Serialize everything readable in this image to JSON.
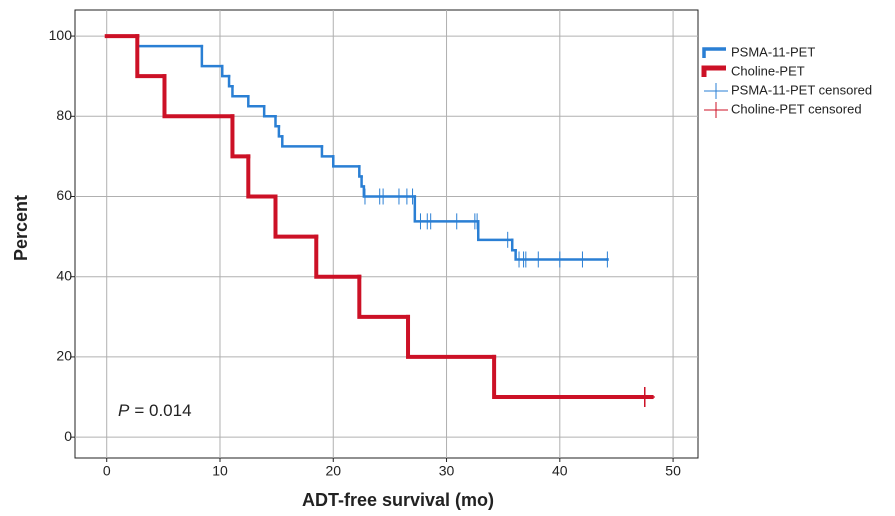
{
  "chart_data": {
    "type": "step",
    "x_label": "ADT-free survival (mo)",
    "y_label": "Percent",
    "annotation": {
      "italic": "P",
      "text": "= 0.014"
    },
    "xlim": [
      -2.8,
      52.2
    ],
    "ylim": [
      -5.2,
      106.5
    ],
    "xticks": [
      0,
      10,
      20,
      30,
      40,
      50
    ],
    "yticks": [
      0,
      20,
      40,
      60,
      80,
      100
    ],
    "grid": true,
    "legend": "right",
    "series": [
      {
        "name": "PSMA-11-PET",
        "color": "#2a7fd4",
        "marker": "step",
        "x": [
          0,
          2.7,
          8.4,
          10.2,
          10.8,
          11.1,
          12.5,
          13.9,
          14.9,
          15.2,
          15.5,
          19.0,
          20.0,
          22.3,
          22.5,
          22.7,
          27.2,
          32.8,
          35.8,
          36.1,
          44.2
        ],
        "values": [
          100,
          97.5,
          92.5,
          90,
          87.5,
          85,
          82.5,
          80,
          77.5,
          75,
          72.5,
          70,
          67.5,
          65,
          62.5,
          60,
          53.8,
          49.2,
          46.6,
          44.3,
          44.3
        ]
      },
      {
        "name": "Choline-PET",
        "color": "#cc1126",
        "marker": "step",
        "x": [
          0,
          2.7,
          5.1,
          11.1,
          12.5,
          14.9,
          18.5,
          22.3,
          26.6,
          34.2,
          48.1
        ],
        "values": [
          100,
          90,
          80,
          70,
          60,
          50,
          40,
          30,
          20,
          10,
          10
        ]
      },
      {
        "name": "PSMA-11-PET censored",
        "color": "#2a7fd4",
        "marker": "plus",
        "x": [
          22.8,
          24.1,
          24.4,
          25.8,
          26.5,
          27.0,
          27.7,
          28.3,
          28.6,
          30.9,
          32.5,
          32.7,
          35.4,
          36.4,
          36.8,
          37.0,
          38.1,
          40.0,
          42.0,
          44.2
        ],
        "values": [
          60,
          60,
          60,
          60,
          60,
          60,
          53.8,
          53.8,
          53.8,
          53.8,
          53.8,
          53.8,
          49.2,
          44.3,
          44.3,
          44.3,
          44.3,
          44.3,
          44.3,
          44.3
        ]
      },
      {
        "name": "Choline-PET censored",
        "color": "#cc1126",
        "marker": "plus",
        "x": [
          47.5
        ],
        "values": [
          10
        ]
      }
    ]
  }
}
